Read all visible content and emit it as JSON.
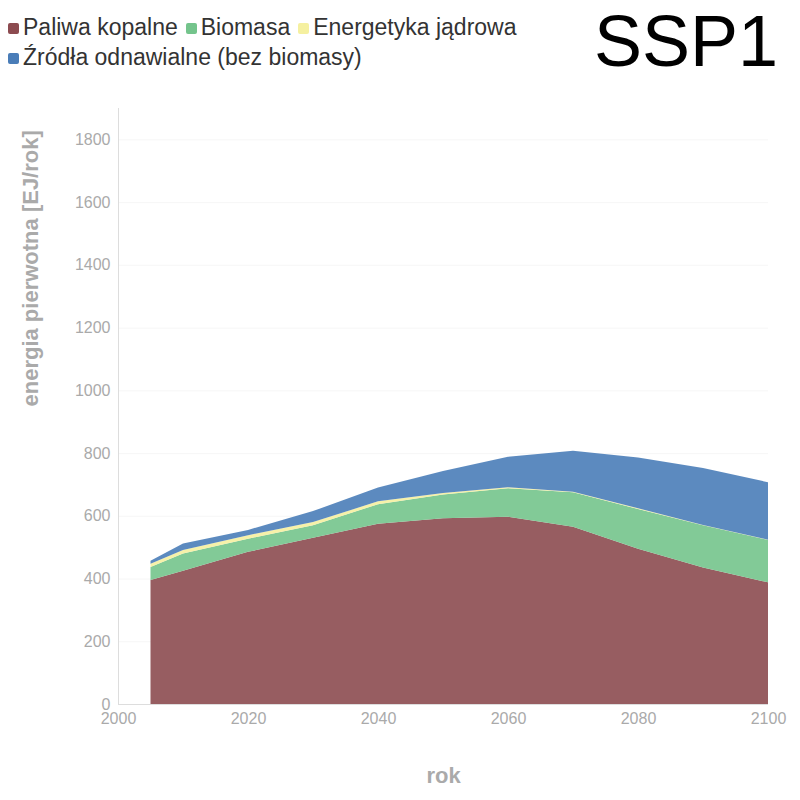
{
  "chart_data": {
    "type": "area",
    "title": "SSP1",
    "x_label": "rok",
    "y_label": "energia pierwotna [EJ/rok]",
    "x": [
      2005,
      2010,
      2020,
      2030,
      2040,
      2050,
      2060,
      2070,
      2080,
      2090,
      2100
    ],
    "series": [
      {
        "name": "Paliwa kopalne",
        "color": "#8c4b50",
        "values": [
          395,
          425,
          485,
          530,
          575,
          592,
          597,
          565,
          495,
          435,
          388
        ]
      },
      {
        "name": "Biomasa",
        "color": "#74c48c",
        "values": [
          42,
          55,
          42,
          40,
          62,
          76,
          91,
          110,
          127,
          135,
          135
        ]
      },
      {
        "name": "Energetyka jądrowa",
        "color": "#f5f0a0",
        "values": [
          10,
          11,
          11,
          10,
          9,
          5,
          3,
          2,
          2,
          1,
          1
        ]
      },
      {
        "name": "Źródła odnawialne (bez biomasy)",
        "color": "#4a7db8",
        "values": [
          10,
          21,
          17,
          35,
          44,
          70,
          97,
          130,
          162,
          181,
          183
        ]
      }
    ],
    "xlim": [
      2000,
      2100
    ],
    "xticks": [
      2000,
      2020,
      2040,
      2060,
      2080,
      2100
    ],
    "ylim": [
      0,
      1900
    ],
    "yticks": [
      0,
      200,
      400,
      600,
      800,
      1000,
      1200,
      1400,
      1600,
      1800
    ],
    "stacked": true,
    "grid": true,
    "legend": "top-left"
  }
}
